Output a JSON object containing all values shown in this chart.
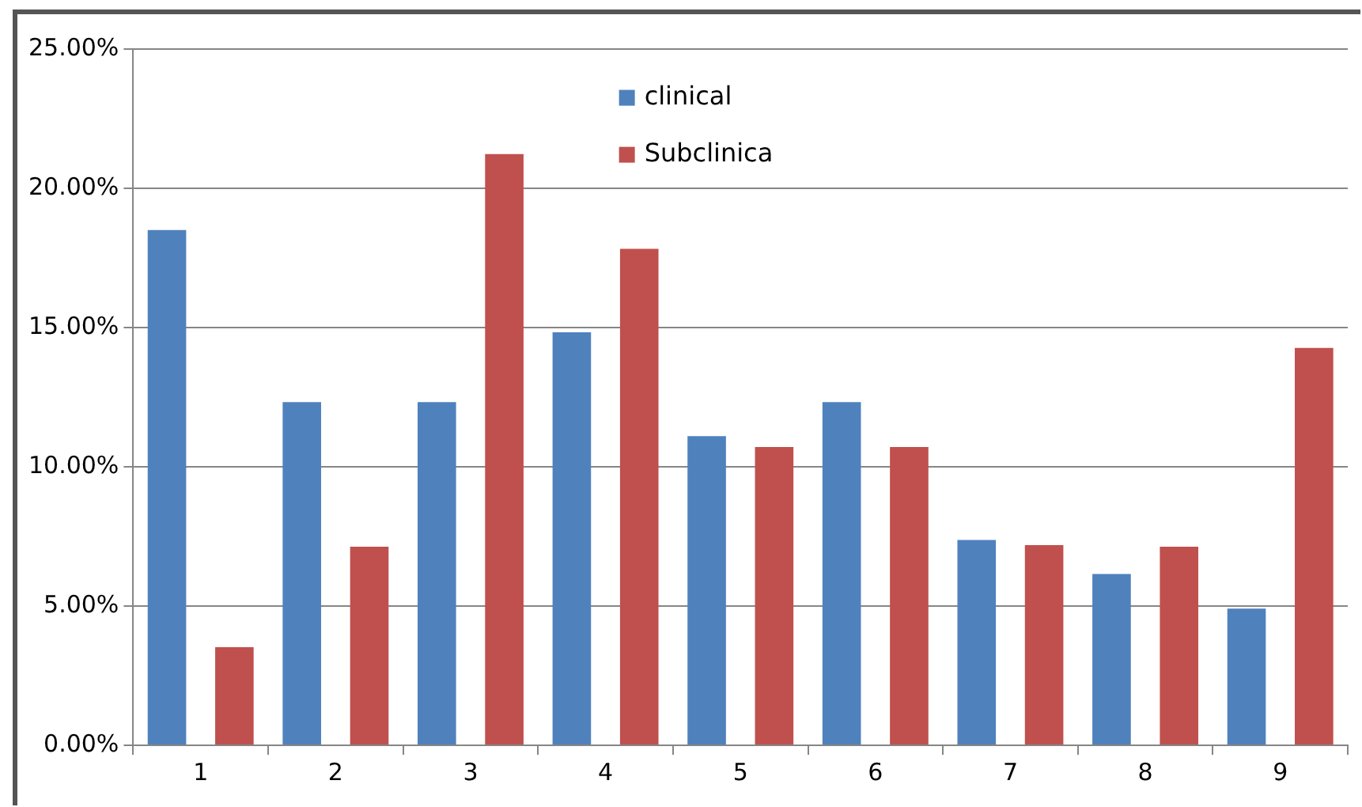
{
  "chart_data": {
    "type": "bar",
    "categories": [
      "1",
      "2",
      "3",
      "4",
      "5",
      "6",
      "7",
      "8",
      "9"
    ],
    "series": [
      {
        "name": "clinical",
        "color": "#4f81bd",
        "values": [
          18.5,
          12.32,
          12.32,
          14.83,
          11.1,
          12.32,
          7.37,
          6.15,
          4.91
        ]
      },
      {
        "name": "Subclinica",
        "color": "#c0504d",
        "values": [
          3.52,
          7.13,
          21.23,
          17.83,
          10.71,
          10.71,
          7.19,
          7.13,
          14.27
        ]
      }
    ],
    "ylim": [
      0,
      25
    ],
    "yticks": [
      {
        "value": 0,
        "label": "0.00%"
      },
      {
        "value": 5,
        "label": "5.00%"
      },
      {
        "value": 10,
        "label": "10.00%"
      },
      {
        "value": 15,
        "label": "15.00%"
      },
      {
        "value": 20,
        "label": "20.00%"
      },
      {
        "value": 25,
        "label": "25.00%"
      }
    ],
    "grid": "y",
    "legend": "top"
  }
}
